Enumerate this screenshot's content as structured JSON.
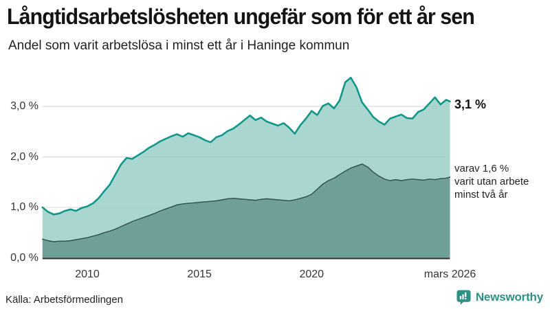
{
  "chart_data": {
    "type": "area",
    "title": "Långtidsarbetslösheten ungefär som för ett år sen",
    "subtitle": "Andel som varit arbetslösa i minst ett år i Haninge kommun",
    "xlabel": "",
    "ylabel": "",
    "ylim": [
      0,
      3.75
    ],
    "grid": "horizontal",
    "grid_color": "#d4d4d4",
    "axis_color": "#333333",
    "legend_position": "right-edge-annotations",
    "x": [
      2008,
      2008.25,
      2008.5,
      2008.75,
      2009,
      2009.25,
      2009.5,
      2009.75,
      2010,
      2010.25,
      2010.5,
      2010.75,
      2011,
      2011.25,
      2011.5,
      2011.75,
      2012,
      2012.25,
      2012.5,
      2012.75,
      2013,
      2013.25,
      2013.5,
      2013.75,
      2014,
      2014.25,
      2014.5,
      2014.75,
      2015,
      2015.25,
      2015.5,
      2015.75,
      2016,
      2016.25,
      2016.5,
      2016.75,
      2017,
      2017.25,
      2017.5,
      2017.75,
      2018,
      2018.25,
      2018.5,
      2018.75,
      2019,
      2019.25,
      2019.5,
      2019.75,
      2020,
      2020.25,
      2020.5,
      2020.75,
      2021,
      2021.25,
      2021.5,
      2021.75,
      2022,
      2022.25,
      2022.5,
      2022.75,
      2023,
      2023.25,
      2023.5,
      2023.75,
      2024,
      2024.25,
      2024.5,
      2024.75,
      2025,
      2025.25,
      2025.5,
      2025.75,
      2026,
      2026.17
    ],
    "series": [
      {
        "name": "Andel arbetslösa minst ett år",
        "line_color": "#11968a",
        "fill_color": "#9ed0c9",
        "line_width": 2.6,
        "latest_value": "3,1 %",
        "values": [
          1.0,
          0.91,
          0.86,
          0.88,
          0.93,
          0.96,
          0.93,
          0.99,
          1.02,
          1.08,
          1.18,
          1.32,
          1.45,
          1.65,
          1.85,
          1.98,
          1.96,
          2.03,
          2.1,
          2.18,
          2.24,
          2.31,
          2.36,
          2.41,
          2.45,
          2.4,
          2.47,
          2.43,
          2.39,
          2.33,
          2.29,
          2.39,
          2.43,
          2.51,
          2.56,
          2.64,
          2.73,
          2.82,
          2.73,
          2.78,
          2.7,
          2.66,
          2.62,
          2.67,
          2.58,
          2.46,
          2.63,
          2.76,
          2.91,
          2.83,
          3.01,
          3.06,
          2.96,
          3.12,
          3.48,
          3.57,
          3.38,
          3.08,
          2.94,
          2.79,
          2.7,
          2.64,
          2.76,
          2.8,
          2.84,
          2.77,
          2.76,
          2.89,
          2.94,
          3.06,
          3.18,
          3.04,
          3.13,
          3.1
        ]
      },
      {
        "name": "varav utan arbete minst två år",
        "line_color": "#2e4f4b",
        "fill_color": "#6a9a94",
        "line_width": 1.4,
        "latest_value": "1,6 %",
        "values": [
          0.37,
          0.34,
          0.32,
          0.33,
          0.33,
          0.34,
          0.36,
          0.38,
          0.4,
          0.43,
          0.46,
          0.5,
          0.53,
          0.57,
          0.62,
          0.67,
          0.72,
          0.76,
          0.8,
          0.84,
          0.88,
          0.93,
          0.97,
          1.01,
          1.05,
          1.07,
          1.08,
          1.09,
          1.1,
          1.11,
          1.12,
          1.13,
          1.15,
          1.17,
          1.18,
          1.17,
          1.16,
          1.15,
          1.14,
          1.16,
          1.17,
          1.16,
          1.15,
          1.14,
          1.13,
          1.15,
          1.18,
          1.21,
          1.26,
          1.36,
          1.46,
          1.53,
          1.58,
          1.65,
          1.72,
          1.78,
          1.82,
          1.86,
          1.8,
          1.7,
          1.62,
          1.56,
          1.53,
          1.55,
          1.53,
          1.55,
          1.56,
          1.55,
          1.54,
          1.56,
          1.55,
          1.57,
          1.58,
          1.6
        ]
      }
    ],
    "yticks": [
      {
        "value": 0,
        "label": "0,0 %"
      },
      {
        "value": 1,
        "label": "1,0 %"
      },
      {
        "value": 2,
        "label": "2,0 %"
      },
      {
        "value": 3,
        "label": "3,0 %"
      }
    ],
    "xticks": [
      {
        "value": 2010,
        "label": "2010"
      },
      {
        "value": 2015,
        "label": "2015"
      },
      {
        "value": 2020,
        "label": "2020"
      },
      {
        "value": 2026.17,
        "label": "mars 2026"
      }
    ]
  },
  "annotations": {
    "latest_label": "3,1 %",
    "secondary": [
      "varav 1,6 %",
      "varit utan arbete",
      "minst två år"
    ]
  },
  "footer": {
    "source": "Källa: Arbetsförmedlingen",
    "brand_name": "Newsworthy",
    "brand_color": "#2d9186"
  }
}
